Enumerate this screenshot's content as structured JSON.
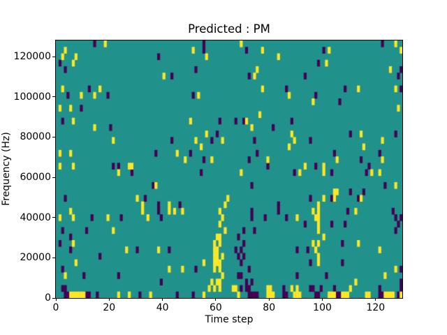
{
  "title": "Predicted : PM",
  "chart_data": {
    "type": "heatmap",
    "title": "Predicted : PM",
    "xlabel": "Time step",
    "ylabel": "Frequency (Hz)",
    "x_range": [
      0,
      130
    ],
    "y_range": [
      0,
      128000
    ],
    "x_ticks": [
      0,
      20,
      40,
      60,
      80,
      100,
      120
    ],
    "y_ticks": [
      0,
      20000,
      40000,
      60000,
      80000,
      100000,
      120000
    ],
    "grid": {
      "cols": 130,
      "rows": 40,
      "row_height_hz": 3200,
      "gridlines": false,
      "legend": false
    },
    "colors": {
      "background_mid": "#21918c",
      "low": "#440154",
      "high": "#fde725",
      "axes": "#000000",
      "figure_bg": "#ffffff"
    },
    "cells": {
      "yellow": [
        [
          18,
          39
        ],
        [
          69,
          39
        ],
        [
          127,
          39
        ],
        [
          3,
          38
        ],
        [
          51,
          38
        ],
        [
          77,
          38
        ],
        [
          102,
          38
        ],
        [
          129,
          38
        ],
        [
          2,
          37
        ],
        [
          7,
          37
        ],
        [
          56,
          37
        ],
        [
          83,
          37
        ],
        [
          6,
          36
        ],
        [
          101,
          36
        ],
        [
          75,
          35
        ],
        [
          125,
          35
        ],
        [
          40,
          34
        ],
        [
          74,
          34
        ],
        [
          2,
          32
        ],
        [
          16,
          32
        ],
        [
          77,
          32
        ],
        [
          113,
          32
        ],
        [
          127,
          32
        ],
        [
          9,
          31
        ],
        [
          14,
          31
        ],
        [
          53,
          31
        ],
        [
          87,
          31
        ],
        [
          96,
          30
        ],
        [
          1,
          29
        ],
        [
          5,
          29
        ],
        [
          128,
          29
        ],
        [
          76,
          28
        ],
        [
          6,
          27
        ],
        [
          50,
          27
        ],
        [
          71,
          27
        ],
        [
          14,
          26
        ],
        [
          73,
          26
        ],
        [
          56,
          25
        ],
        [
          88,
          25
        ],
        [
          114,
          25
        ],
        [
          21,
          24
        ],
        [
          52,
          24
        ],
        [
          62,
          24
        ],
        [
          89,
          24
        ],
        [
          122,
          24
        ],
        [
          54,
          23
        ],
        [
          87,
          23
        ],
        [
          115,
          23
        ],
        [
          1,
          22
        ],
        [
          5,
          22
        ],
        [
          45,
          22
        ],
        [
          48,
          21
        ],
        [
          58,
          21
        ],
        [
          79,
          21
        ],
        [
          105,
          21
        ],
        [
          122,
          21
        ],
        [
          1,
          20
        ],
        [
          6,
          20
        ],
        [
          27,
          20
        ],
        [
          28,
          20
        ],
        [
          93,
          20
        ],
        [
          100,
          20
        ],
        [
          23,
          19
        ],
        [
          69,
          19
        ],
        [
          91,
          19
        ],
        [
          100,
          19
        ],
        [
          118,
          19
        ],
        [
          121,
          19
        ],
        [
          37,
          17
        ],
        [
          127,
          17
        ],
        [
          104,
          16
        ],
        [
          105,
          16
        ],
        [
          30,
          15
        ],
        [
          64,
          15
        ],
        [
          100,
          15
        ],
        [
          104,
          15
        ],
        [
          114,
          15
        ],
        [
          32,
          14
        ],
        [
          42,
          14
        ],
        [
          63,
          14
        ],
        [
          98,
          14
        ],
        [
          5,
          13
        ],
        [
          32,
          13
        ],
        [
          42,
          13
        ],
        [
          44,
          13
        ],
        [
          47,
          13
        ],
        [
          61,
          13
        ],
        [
          96,
          13
        ],
        [
          98,
          13
        ],
        [
          112,
          13
        ],
        [
          1,
          12
        ],
        [
          6,
          12
        ],
        [
          19,
          12
        ],
        [
          34,
          12
        ],
        [
          62,
          12
        ],
        [
          90,
          12
        ],
        [
          97,
          12
        ],
        [
          98,
          12
        ],
        [
          61,
          11
        ],
        [
          98,
          11
        ],
        [
          21,
          10
        ],
        [
          63,
          10
        ],
        [
          98,
          10
        ],
        [
          60,
          9
        ],
        [
          61,
          9
        ],
        [
          100,
          9
        ],
        [
          6,
          8
        ],
        [
          59,
          8
        ],
        [
          61,
          8
        ],
        [
          96,
          8
        ],
        [
          98,
          8
        ],
        [
          113,
          8
        ],
        [
          26,
          7
        ],
        [
          38,
          7
        ],
        [
          59,
          7
        ],
        [
          60,
          7
        ],
        [
          97,
          7
        ],
        [
          121,
          7
        ],
        [
          59,
          6
        ],
        [
          60,
          6
        ],
        [
          62,
          6
        ],
        [
          98,
          6
        ],
        [
          7,
          5
        ],
        [
          55,
          5
        ],
        [
          59,
          5
        ],
        [
          60,
          5
        ],
        [
          61,
          5
        ],
        [
          98,
          5
        ],
        [
          42,
          4
        ],
        [
          47,
          4
        ],
        [
          59,
          4
        ],
        [
          61,
          4
        ],
        [
          127,
          4
        ],
        [
          3,
          3
        ],
        [
          62,
          3
        ],
        [
          123,
          3
        ],
        [
          58,
          2
        ],
        [
          60,
          2
        ],
        [
          61,
          2
        ],
        [
          112,
          2
        ],
        [
          57,
          1
        ],
        [
          59,
          1
        ],
        [
          61,
          1
        ],
        [
          66,
          1
        ],
        [
          67,
          1
        ],
        [
          79,
          1
        ],
        [
          80,
          1
        ],
        [
          88,
          1
        ],
        [
          90,
          1
        ],
        [
          110,
          1
        ],
        [
          5,
          0
        ],
        [
          6,
          0
        ],
        [
          7,
          0
        ],
        [
          8,
          0
        ],
        [
          9,
          0
        ],
        [
          10,
          0
        ],
        [
          23,
          0
        ],
        [
          27,
          0
        ],
        [
          35,
          0
        ],
        [
          55,
          0
        ],
        [
          68,
          0
        ],
        [
          79,
          0
        ],
        [
          80,
          0
        ],
        [
          81,
          0
        ],
        [
          89,
          0
        ],
        [
          90,
          0
        ],
        [
          91,
          0
        ],
        [
          102,
          0
        ],
        [
          103,
          0
        ],
        [
          104,
          0
        ],
        [
          107,
          0
        ],
        [
          108,
          0
        ],
        [
          109,
          0
        ],
        [
          116,
          0
        ],
        [
          117,
          0
        ],
        [
          123,
          0
        ],
        [
          124,
          0
        ],
        [
          125,
          0
        ],
        [
          126,
          0
        ],
        [
          129,
          0
        ]
      ],
      "dark": [
        [
          14,
          39
        ],
        [
          55,
          39
        ],
        [
          122,
          39
        ],
        [
          55,
          38
        ],
        [
          71,
          38
        ],
        [
          100,
          38
        ],
        [
          38,
          37
        ],
        [
          1,
          36
        ],
        [
          98,
          36
        ],
        [
          3,
          35
        ],
        [
          52,
          35
        ],
        [
          129,
          35
        ],
        [
          43,
          34
        ],
        [
          72,
          34
        ],
        [
          93,
          34
        ],
        [
          128,
          34
        ],
        [
          12,
          32
        ],
        [
          86,
          32
        ],
        [
          108,
          32
        ],
        [
          129,
          32
        ],
        [
          4,
          31
        ],
        [
          19,
          31
        ],
        [
          51,
          31
        ],
        [
          97,
          31
        ],
        [
          106,
          30
        ],
        [
          9,
          29
        ],
        [
          2,
          27
        ],
        [
          61,
          27
        ],
        [
          67,
          27
        ],
        [
          70,
          27
        ],
        [
          88,
          27
        ],
        [
          20,
          26
        ],
        [
          81,
          26
        ],
        [
          60,
          25
        ],
        [
          110,
          25
        ],
        [
          127,
          25
        ],
        [
          43,
          24
        ],
        [
          58,
          24
        ],
        [
          74,
          24
        ],
        [
          95,
          24
        ],
        [
          37,
          22
        ],
        [
          50,
          22
        ],
        [
          75,
          22
        ],
        [
          104,
          22
        ],
        [
          121,
          22
        ],
        [
          55,
          21
        ],
        [
          72,
          21
        ],
        [
          114,
          21
        ],
        [
          21,
          20
        ],
        [
          23,
          20
        ],
        [
          79,
          20
        ],
        [
          97,
          20
        ],
        [
          117,
          20
        ],
        [
          28,
          19
        ],
        [
          54,
          19
        ],
        [
          89,
          19
        ],
        [
          103,
          19
        ],
        [
          116,
          19
        ],
        [
          36,
          17
        ],
        [
          73,
          17
        ],
        [
          123,
          17
        ],
        [
          110,
          16
        ],
        [
          115,
          16
        ],
        [
          3,
          15
        ],
        [
          33,
          15
        ],
        [
          95,
          15
        ],
        [
          103,
          15
        ],
        [
          113,
          15
        ],
        [
          38,
          14
        ],
        [
          46,
          14
        ],
        [
          83,
          14
        ],
        [
          38,
          13
        ],
        [
          73,
          13
        ],
        [
          83,
          13
        ],
        [
          109,
          13
        ],
        [
          126,
          13
        ],
        [
          13,
          12
        ],
        [
          24,
          12
        ],
        [
          39,
          12
        ],
        [
          73,
          12
        ],
        [
          78,
          12
        ],
        [
          86,
          12
        ],
        [
          127,
          12
        ],
        [
          129,
          12
        ],
        [
          93,
          11
        ],
        [
          103,
          11
        ],
        [
          108,
          11
        ],
        [
          128,
          11
        ],
        [
          2,
          10
        ],
        [
          11,
          10
        ],
        [
          70,
          10
        ],
        [
          74,
          10
        ],
        [
          127,
          10
        ],
        [
          5,
          9
        ],
        [
          68,
          9
        ],
        [
          1,
          8
        ],
        [
          70,
          8
        ],
        [
          107,
          8
        ],
        [
          5,
          7
        ],
        [
          30,
          7
        ],
        [
          42,
          7
        ],
        [
          67,
          7
        ],
        [
          69,
          7
        ],
        [
          90,
          7
        ],
        [
          94,
          7
        ],
        [
          16,
          6
        ],
        [
          68,
          6
        ],
        [
          70,
          6
        ],
        [
          69,
          5
        ],
        [
          95,
          5
        ],
        [
          107,
          5
        ],
        [
          2,
          4
        ],
        [
          52,
          4
        ],
        [
          72,
          4
        ],
        [
          129,
          4
        ],
        [
          10,
          3
        ],
        [
          23,
          3
        ],
        [
          68,
          3
        ],
        [
          69,
          3
        ],
        [
          90,
          3
        ],
        [
          101,
          3
        ],
        [
          39,
          2
        ],
        [
          71,
          2
        ],
        [
          73,
          2
        ],
        [
          129,
          2
        ],
        [
          2,
          1
        ],
        [
          3,
          1
        ],
        [
          69,
          1
        ],
        [
          71,
          1
        ],
        [
          72,
          1
        ],
        [
          85,
          1
        ],
        [
          95,
          1
        ],
        [
          96,
          1
        ],
        [
          99,
          1
        ],
        [
          104,
          1
        ],
        [
          121,
          1
        ],
        [
          129,
          1
        ],
        [
          3,
          0
        ],
        [
          4,
          0
        ],
        [
          11,
          0
        ],
        [
          12,
          0
        ],
        [
          15,
          0
        ],
        [
          31,
          0
        ],
        [
          45,
          0
        ],
        [
          51,
          0
        ],
        [
          72,
          0
        ],
        [
          73,
          0
        ],
        [
          74,
          0
        ],
        [
          75,
          0
        ],
        [
          85,
          0
        ],
        [
          86,
          0
        ],
        [
          97,
          0
        ],
        [
          98,
          0
        ],
        [
          105,
          0
        ],
        [
          106,
          0
        ],
        [
          121,
          0
        ],
        [
          122,
          0
        ],
        [
          128,
          0
        ]
      ]
    }
  }
}
